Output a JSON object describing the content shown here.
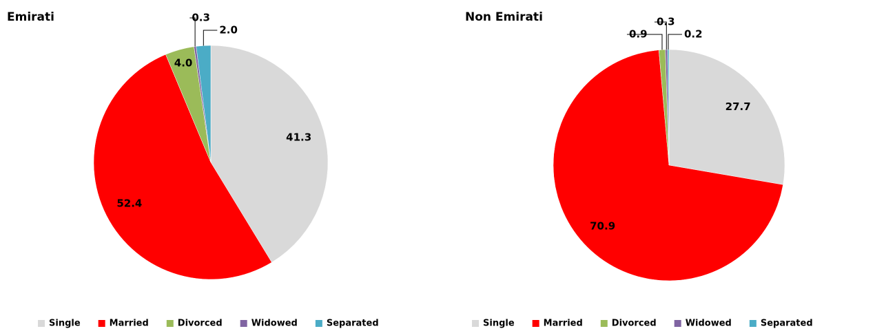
{
  "chart_data": [
    {
      "type": "pie",
      "title": "Emirati",
      "categories": [
        "Single",
        "Married",
        "Divorced",
        "Widowed",
        "Separated"
      ],
      "values": [
        41.3,
        52.4,
        4.0,
        0.3,
        2.0
      ],
      "value_labels": [
        "41.3",
        "52.4",
        "4.0",
        "0.3",
        "2.0"
      ],
      "colors": [
        "#d9d9d9",
        "#ff0000",
        "#9bbb59",
        "#8064a2",
        "#4bacc6"
      ],
      "legend": "bottom"
    },
    {
      "type": "pie",
      "title": "Non Emirati",
      "categories": [
        "Single",
        "Married",
        "Divorced",
        "Widowed",
        "Separated"
      ],
      "values": [
        27.7,
        70.9,
        0.9,
        0.3,
        0.2
      ],
      "value_labels": [
        "27.7",
        "70.9",
        "0.9",
        "0.3",
        "0.2"
      ],
      "colors": [
        "#d9d9d9",
        "#ff0000",
        "#9bbb59",
        "#8064a2",
        "#4bacc6"
      ],
      "legend": "bottom"
    }
  ]
}
